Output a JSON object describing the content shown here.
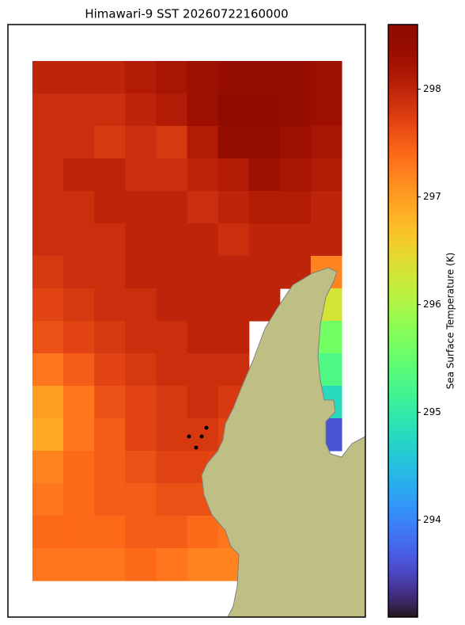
{
  "chart_data": {
    "type": "heatmap",
    "title": "Himawari-9 SST 20260722160000",
    "colorbar_label": "Sea Surface Temperature (K)",
    "colormap": "turbo",
    "clim": [
      293.1,
      298.6
    ],
    "cticks": [
      294,
      295,
      296,
      297,
      298
    ],
    "values": [
      [
        298.0,
        298.0,
        298.0,
        298.1,
        298.2,
        298.3,
        298.4,
        298.4,
        298.4,
        298.3
      ],
      [
        297.9,
        297.9,
        297.9,
        298.0,
        298.1,
        298.3,
        298.5,
        298.5,
        298.4,
        298.3
      ],
      [
        297.9,
        297.9,
        297.8,
        297.9,
        297.8,
        298.1,
        298.4,
        298.4,
        298.3,
        298.2
      ],
      [
        297.9,
        298.0,
        298.0,
        297.9,
        297.9,
        298.0,
        298.1,
        298.3,
        298.2,
        298.1
      ],
      [
        297.9,
        297.9,
        298.0,
        298.0,
        298.0,
        297.9,
        298.0,
        298.1,
        298.1,
        298.0
      ],
      [
        297.9,
        297.9,
        297.9,
        298.0,
        298.0,
        298.0,
        297.9,
        298.0,
        298.0,
        298.0
      ],
      [
        297.8,
        297.9,
        297.9,
        298.0,
        298.0,
        298.0,
        298.0,
        298.0,
        298.0,
        297.2
      ],
      [
        297.7,
        297.8,
        297.9,
        297.9,
        298.0,
        298.0,
        298.0,
        298.0,
        null,
        296.3
      ],
      [
        297.6,
        297.7,
        297.8,
        297.9,
        297.9,
        298.0,
        298.0,
        null,
        null,
        295.6
      ],
      [
        297.3,
        297.5,
        297.7,
        297.8,
        297.9,
        297.9,
        297.9,
        null,
        null,
        295.3
      ],
      [
        297.0,
        297.3,
        297.6,
        297.7,
        297.8,
        297.9,
        297.8,
        null,
        null,
        294.8
      ],
      [
        296.9,
        297.3,
        297.5,
        297.7,
        297.8,
        297.8,
        297.7,
        null,
        null,
        293.6
      ],
      [
        297.2,
        297.4,
        297.5,
        297.6,
        297.7,
        297.7,
        null,
        null,
        null,
        null
      ],
      [
        297.3,
        297.4,
        297.5,
        297.5,
        297.6,
        297.6,
        297.5,
        null,
        null,
        null
      ],
      [
        297.4,
        297.4,
        297.4,
        297.5,
        297.5,
        297.4,
        297.3,
        null,
        null,
        null
      ],
      [
        297.3,
        297.3,
        297.3,
        297.4,
        297.3,
        297.2,
        297.2,
        null,
        null,
        null
      ]
    ]
  }
}
